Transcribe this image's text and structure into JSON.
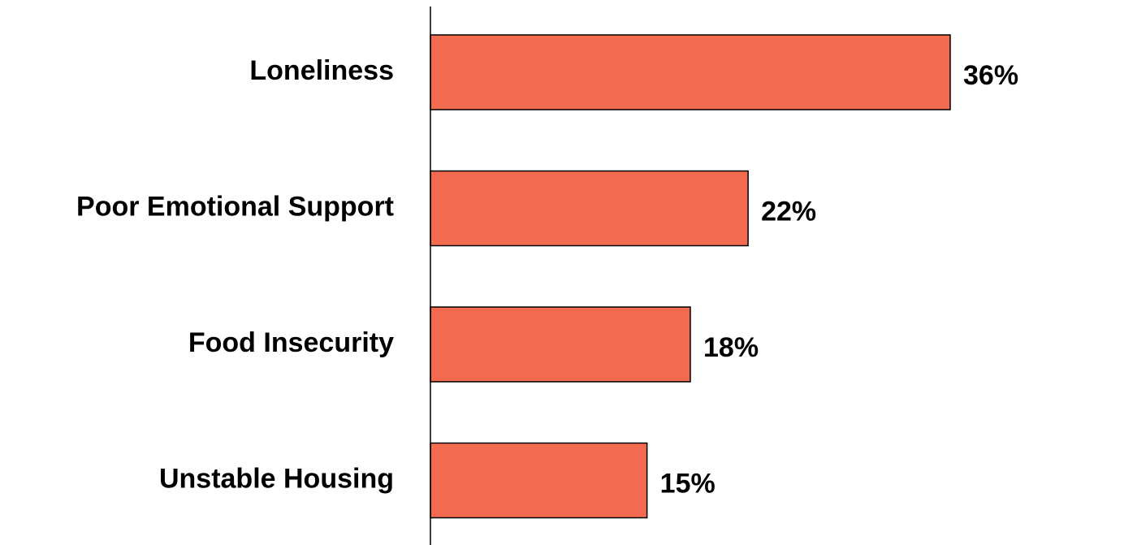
{
  "chart_data": {
    "type": "bar",
    "orientation": "horizontal",
    "title": "",
    "xlabel": "",
    "ylabel": "",
    "categories": [
      "Loneliness",
      "Poor Emotional Support",
      "Food Insecurity",
      "Unstable Housing"
    ],
    "values": [
      36,
      22,
      18,
      15
    ],
    "value_labels": [
      "36%",
      "22%",
      "18%",
      "15%"
    ],
    "unit": "%",
    "xlim": [
      0,
      40
    ],
    "grid": false,
    "legend": "none",
    "bar_color": "#F26A4F",
    "bar_edge_color": "#000000"
  }
}
